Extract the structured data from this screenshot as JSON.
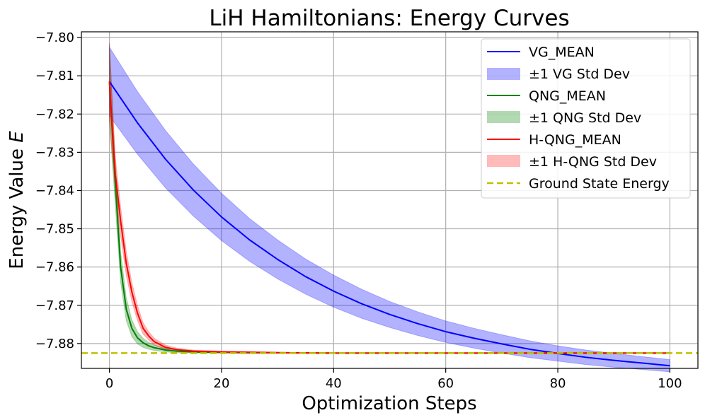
{
  "chart_data": {
    "type": "line",
    "title": "LiH Hamiltonians: Energy Curves",
    "xlabel": "Optimization Steps",
    "ylabel_prefix": "Energy Value ",
    "ylabel_var": "E",
    "xlim": [
      -5,
      105
    ],
    "ylim": [
      -7.8865,
      -7.7985
    ],
    "xticks": [
      0,
      20,
      40,
      60,
      80,
      100
    ],
    "yticks": [
      -7.8,
      -7.81,
      -7.82,
      -7.83,
      -7.84,
      -7.85,
      -7.86,
      -7.87,
      -7.88
    ],
    "ytick_labels": [
      "−7.80",
      "−7.81",
      "−7.82",
      "−7.83",
      "−7.84",
      "−7.85",
      "−7.86",
      "−7.87",
      "−7.88"
    ],
    "grid": true,
    "legend_position": "top-right",
    "ground_state_energy": -7.8825,
    "series": [
      {
        "name": "VG_MEAN",
        "band_name": "±1 VG Std Dev",
        "color": "#0000ff",
        "band_color": "#0000ff",
        "band_opacity": 0.3,
        "x": [
          0,
          5,
          10,
          15,
          20,
          25,
          30,
          35,
          40,
          45,
          50,
          55,
          60,
          65,
          70,
          75,
          80,
          85,
          90,
          95,
          100
        ],
        "y": [
          -7.8115,
          -7.8223,
          -7.8318,
          -7.8399,
          -7.8469,
          -7.8529,
          -7.858,
          -7.8625,
          -7.8663,
          -7.8696,
          -7.8724,
          -7.8748,
          -7.8769,
          -7.8786,
          -7.8801,
          -7.8815,
          -7.8826,
          -7.8836,
          -7.8844,
          -7.8851,
          -7.8858
        ],
        "std": [
          0.009,
          0.0082,
          0.0075,
          0.0068,
          0.0062,
          0.0056,
          0.0051,
          0.0046,
          0.0042,
          0.0038,
          0.0034,
          0.0031,
          0.0028,
          0.0026,
          0.0024,
          0.0022,
          0.002,
          0.0019,
          0.0018,
          0.0017,
          0.0016
        ]
      },
      {
        "name": "QNG_MEAN",
        "band_name": "±1 QNG Std Dev",
        "color": "#008000",
        "band_color": "#008000",
        "band_opacity": 0.3,
        "x": [
          0,
          1,
          2,
          3,
          4,
          5,
          6,
          7,
          8,
          10,
          12,
          15,
          20,
          25,
          30,
          40,
          50,
          60,
          80,
          100
        ],
        "y": [
          -7.8115,
          -7.837,
          -7.86,
          -7.871,
          -7.876,
          -7.8785,
          -7.8798,
          -7.8806,
          -7.8811,
          -7.8817,
          -7.882,
          -7.8822,
          -7.8823,
          -7.8824,
          -7.8824,
          -7.8825,
          -7.8825,
          -7.8825,
          -7.8825,
          -7.8825
        ],
        "std": [
          0.01,
          0.006,
          0.004,
          0.003,
          0.0022,
          0.0016,
          0.0012,
          0.0009,
          0.0007,
          0.0005,
          0.0004,
          0.0003,
          0.0002,
          0.0002,
          0.0001,
          0.0001,
          0.0001,
          0.0001,
          0.0001,
          0.0001
        ]
      },
      {
        "name": "H-QNG_MEAN",
        "band_name": "±1 H-QNG Std Dev",
        "color": "#ff0000",
        "band_color": "#ff0000",
        "band_opacity": 0.27,
        "x": [
          0,
          1,
          2,
          3,
          4,
          5,
          6,
          7,
          8,
          10,
          12,
          15,
          20,
          25,
          30,
          40,
          50,
          60,
          80,
          100
        ],
        "y": [
          -7.8115,
          -7.835,
          -7.848,
          -7.859,
          -7.8665,
          -7.872,
          -7.876,
          -7.878,
          -7.8795,
          -7.881,
          -7.8816,
          -7.882,
          -7.8822,
          -7.8823,
          -7.8824,
          -7.8825,
          -7.8825,
          -7.8825,
          -7.8825,
          -7.8825
        ],
        "std": [
          0.01,
          0.0045,
          0.0038,
          0.0032,
          0.0025,
          0.002,
          0.0015,
          0.0011,
          0.0009,
          0.0006,
          0.0004,
          0.0003,
          0.0002,
          0.0002,
          0.0001,
          0.0001,
          0.0001,
          0.0001,
          0.0001,
          0.0001
        ]
      }
    ],
    "legend": {
      "vg_mean": "VG_MEAN",
      "vg_std": "±1 VG Std Dev",
      "qng_mean": "QNG_MEAN",
      "qng_std": "±1 QNG Std Dev",
      "hqng_mean": "H-QNG_MEAN",
      "hqng_std": "±1 H-QNG Std Dev",
      "ground": "Ground State Energy"
    },
    "ground_color": "#bfbf00"
  }
}
